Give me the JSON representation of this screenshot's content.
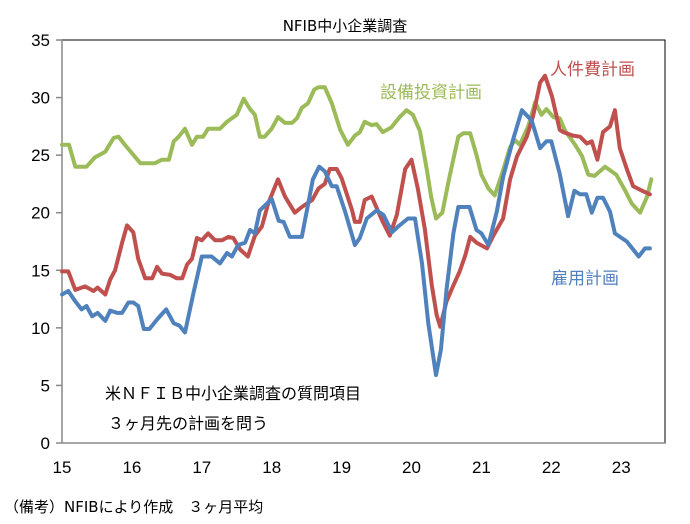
{
  "chart_data": {
    "type": "line",
    "title": "NFIB中小企業調査",
    "xlabel": "",
    "ylabel": "",
    "xlim": [
      2015,
      2023.65
    ],
    "ylim": [
      0,
      35
    ],
    "yticks": [
      "0",
      "5",
      "10",
      "15",
      "20",
      "25",
      "30",
      "35"
    ],
    "xticks": [
      "15",
      "16",
      "17",
      "18",
      "19",
      "20",
      "21",
      "22",
      "23"
    ],
    "grid": false,
    "annotations": [
      "米ＮＦＩＢ中小企業調査の質問項目",
      "３ヶ月先の計画を問う"
    ],
    "series": [
      {
        "name": "設備投資計画",
        "color": "#9bbb59",
        "x": [
          2015.0,
          2015.1,
          2015.19,
          2015.35,
          2015.47,
          2015.62,
          2015.74,
          2015.81,
          2015.9,
          2016.12,
          2016.33,
          2016.43,
          2016.53,
          2016.6,
          2016.67,
          2016.76,
          2016.86,
          2016.93,
          2017.02,
          2017.09,
          2017.26,
          2017.36,
          2017.5,
          2017.6,
          2017.69,
          2017.76,
          2017.83,
          2017.9,
          2018.0,
          2018.09,
          2018.19,
          2018.29,
          2018.36,
          2018.43,
          2018.52,
          2018.61,
          2018.67,
          2018.76,
          2018.86,
          2018.98,
          2019.09,
          2019.19,
          2019.26,
          2019.33,
          2019.43,
          2019.5,
          2019.59,
          2019.71,
          2019.83,
          2019.93,
          2020.02,
          2020.12,
          2020.22,
          2020.28,
          2020.35,
          2020.44,
          2020.54,
          2020.67,
          2020.74,
          2020.84,
          2020.93,
          2021.0,
          2021.1,
          2021.19,
          2021.29,
          2021.41,
          2021.48,
          2021.55,
          2021.67,
          2021.77,
          2021.86,
          2021.93,
          2022.03,
          2022.12,
          2022.2,
          2022.34,
          2022.44,
          2022.53,
          2022.62,
          2022.77,
          2022.93,
          2023.05,
          2023.15,
          2023.27,
          2023.37,
          2023.43
        ],
        "values": [
          25.9,
          25.9,
          24,
          24,
          24.8,
          25.3,
          26.5,
          26.6,
          25.9,
          24.3,
          24.3,
          24.6,
          24.6,
          26.2,
          26.6,
          27.3,
          25.9,
          26.6,
          26.6,
          27.3,
          27.3,
          27.9,
          28.5,
          29.9,
          29,
          28.5,
          26.6,
          26.6,
          27.3,
          28.3,
          27.8,
          27.8,
          28.2,
          29.1,
          29.5,
          30.7,
          30.9,
          30.9,
          29.5,
          27.2,
          25.9,
          26.7,
          27,
          27.9,
          27.6,
          27.7,
          27,
          27.4,
          28.3,
          28.9,
          28.5,
          27.1,
          23.7,
          21.4,
          19.5,
          20,
          23,
          26.6,
          26.9,
          26.9,
          25,
          23.3,
          22.1,
          21.5,
          23.3,
          25.7,
          26.3,
          25.9,
          27.5,
          29.6,
          28.5,
          29,
          28.3,
          28.2,
          27.1,
          25.9,
          24.9,
          23.3,
          23.2,
          24,
          23.3,
          22,
          20.8,
          20,
          21.4,
          22.9
        ]
      },
      {
        "name": "人件費計画",
        "color": "#c0504d",
        "x": [
          2015.0,
          2015.09,
          2015.19,
          2015.33,
          2015.45,
          2015.51,
          2015.62,
          2015.69,
          2015.76,
          2015.86,
          2015.93,
          2016.02,
          2016.09,
          2016.19,
          2016.29,
          2016.36,
          2016.43,
          2016.55,
          2016.64,
          2016.72,
          2016.79,
          2016.86,
          2016.93,
          2017.0,
          2017.09,
          2017.19,
          2017.29,
          2017.38,
          2017.45,
          2017.55,
          2017.66,
          2017.76,
          2017.86,
          2017.95,
          2018.09,
          2018.19,
          2018.33,
          2018.43,
          2018.58,
          2018.67,
          2018.76,
          2018.83,
          2018.93,
          2019.0,
          2019.15,
          2019.19,
          2019.26,
          2019.33,
          2019.43,
          2019.59,
          2019.69,
          2019.79,
          2019.91,
          2020.0,
          2020.09,
          2020.19,
          2020.29,
          2020.36,
          2020.41,
          2020.5,
          2020.6,
          2020.69,
          2020.77,
          2020.84,
          2020.93,
          2021.08,
          2021.17,
          2021.31,
          2021.41,
          2021.51,
          2021.65,
          2021.74,
          2021.84,
          2021.91,
          2022.01,
          2022.12,
          2022.17,
          2022.31,
          2022.41,
          2022.51,
          2022.58,
          2022.66,
          2022.74,
          2022.84,
          2022.91,
          2022.98,
          2023.08,
          2023.17,
          2023.3,
          2023.41
        ],
        "values": [
          14.9,
          14.9,
          13.3,
          13.6,
          13.2,
          13.5,
          12.9,
          14.2,
          15,
          17.4,
          18.9,
          18.3,
          16,
          14.3,
          14.3,
          15.3,
          14.7,
          14.6,
          14.3,
          14.3,
          15.5,
          16,
          17.8,
          17.6,
          18.2,
          17.6,
          17.6,
          17.9,
          17.8,
          16.8,
          16.2,
          18,
          18.8,
          20.8,
          22.9,
          21.4,
          20,
          20.5,
          21.1,
          22.1,
          22.5,
          23.8,
          23.8,
          23,
          20.2,
          19.2,
          19.2,
          21.1,
          21.4,
          19.2,
          18,
          19.8,
          23.8,
          24.6,
          22.1,
          18.6,
          13.7,
          11.1,
          10.1,
          12.3,
          13.7,
          14.9,
          16.3,
          17.9,
          17.4,
          16.9,
          18,
          19.5,
          22.9,
          24.9,
          26.6,
          28.4,
          31.3,
          31.9,
          30.1,
          27.2,
          27,
          26.7,
          26.6,
          26,
          26.2,
          24.6,
          27,
          27.5,
          28.9,
          25.6,
          23.8,
          22.3,
          21.9,
          21.6
        ]
      },
      {
        "name": "雇用計画",
        "color": "#4f81bd",
        "x": [
          2015.0,
          2015.09,
          2015.19,
          2015.28,
          2015.35,
          2015.43,
          2015.51,
          2015.62,
          2015.69,
          2015.79,
          2015.86,
          2015.95,
          2016.02,
          2016.09,
          2016.17,
          2016.25,
          2016.37,
          2016.49,
          2016.6,
          2016.68,
          2016.76,
          2016.88,
          2017.0,
          2017.14,
          2017.26,
          2017.36,
          2017.43,
          2017.52,
          2017.62,
          2017.69,
          2017.76,
          2017.83,
          2018.0,
          2018.1,
          2018.17,
          2018.26,
          2018.43,
          2018.59,
          2018.68,
          2018.76,
          2018.86,
          2018.93,
          2019.05,
          2019.19,
          2019.26,
          2019.36,
          2019.5,
          2019.6,
          2019.72,
          2019.81,
          2019.95,
          2020.05,
          2020.15,
          2020.24,
          2020.35,
          2020.42,
          2020.5,
          2020.6,
          2020.67,
          2020.83,
          2020.93,
          2021.0,
          2021.1,
          2021.22,
          2021.31,
          2021.45,
          2021.58,
          2021.72,
          2021.84,
          2021.93,
          2022.0,
          2022.12,
          2022.24,
          2022.33,
          2022.41,
          2022.5,
          2022.58,
          2022.66,
          2022.74,
          2022.84,
          2022.91,
          2023.08,
          2023.25,
          2023.34,
          2023.41
        ],
        "values": [
          12.9,
          13.2,
          12.3,
          11.6,
          11.9,
          11,
          11.3,
          10.6,
          11.5,
          11.3,
          11.3,
          12.2,
          12.2,
          11.9,
          9.9,
          9.9,
          10.8,
          11.6,
          10.4,
          10.2,
          9.6,
          13,
          16.2,
          16.2,
          15.6,
          16.5,
          16.2,
          17.2,
          17.4,
          18.5,
          18.2,
          20.2,
          21.2,
          19.3,
          19.2,
          17.9,
          17.9,
          22.9,
          24,
          23.6,
          22.3,
          22.3,
          20.1,
          17.2,
          17.8,
          19.5,
          20.2,
          19.8,
          18.3,
          18.8,
          19.5,
          19.5,
          15.6,
          10.4,
          5.9,
          8.1,
          13.3,
          18.2,
          20.5,
          20.5,
          18.5,
          18.2,
          17.2,
          20.1,
          23.1,
          26.3,
          28.9,
          28,
          25.6,
          26.2,
          26.2,
          23.4,
          19.7,
          21.9,
          21.6,
          21.6,
          20,
          21.3,
          21.3,
          20.1,
          18.2,
          17.5,
          16.2,
          16.9,
          16.9
        ]
      }
    ]
  },
  "footer": "（備考）NFIBにより作成　３ヶ月平均"
}
